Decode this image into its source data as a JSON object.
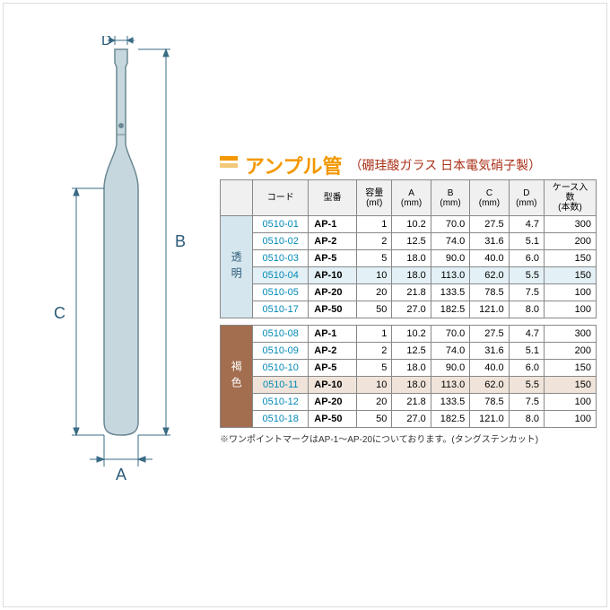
{
  "title": {
    "main": "アンプル管",
    "sub": "（硼珪酸ガラス 日本電気硝子製）"
  },
  "headers": {
    "code": "コード",
    "model": "型番",
    "cap_l1": "容量",
    "cap_l2": "(mℓ)",
    "a_l1": "A",
    "a_l2": "(mm)",
    "b_l1": "B",
    "b_l2": "(mm)",
    "c_l1": "C",
    "c_l2": "(mm)",
    "d_l1": "D",
    "d_l2": "(mm)",
    "case_l1": "ケース入数",
    "case_l2": "(本数)"
  },
  "group_clear": {
    "label": "透明"
  },
  "group_brown": {
    "label": "褐色"
  },
  "rows_clear": [
    {
      "code": "0510-01",
      "model": "AP-1",
      "cap": "1",
      "a": "10.2",
      "b": "70.0",
      "c": "27.5",
      "d": "4.7",
      "case": "300",
      "hl": false
    },
    {
      "code": "0510-02",
      "model": "AP-2",
      "cap": "2",
      "a": "12.5",
      "b": "74.0",
      "c": "31.6",
      "d": "5.1",
      "case": "200",
      "hl": false
    },
    {
      "code": "0510-03",
      "model": "AP-5",
      "cap": "5",
      "a": "18.0",
      "b": "90.0",
      "c": "40.0",
      "d": "6.0",
      "case": "150",
      "hl": false
    },
    {
      "code": "0510-04",
      "model": "AP-10",
      "cap": "10",
      "a": "18.0",
      "b": "113.0",
      "c": "62.0",
      "d": "5.5",
      "case": "150",
      "hl": true
    },
    {
      "code": "0510-05",
      "model": "AP-20",
      "cap": "20",
      "a": "21.8",
      "b": "133.5",
      "c": "78.5",
      "d": "7.5",
      "case": "100",
      "hl": false
    },
    {
      "code": "0510-17",
      "model": "AP-50",
      "cap": "50",
      "a": "27.0",
      "b": "182.5",
      "c": "121.0",
      "d": "8.0",
      "case": "100",
      "hl": false
    }
  ],
  "rows_brown": [
    {
      "code": "0510-08",
      "model": "AP-1",
      "cap": "1",
      "a": "10.2",
      "b": "70.0",
      "c": "27.5",
      "d": "4.7",
      "case": "300",
      "hl": false
    },
    {
      "code": "0510-09",
      "model": "AP-2",
      "cap": "2",
      "a": "12.5",
      "b": "74.0",
      "c": "31.6",
      "d": "5.1",
      "case": "200",
      "hl": false
    },
    {
      "code": "0510-10",
      "model": "AP-5",
      "cap": "5",
      "a": "18.0",
      "b": "90.0",
      "c": "40.0",
      "d": "6.0",
      "case": "150",
      "hl": false
    },
    {
      "code": "0510-11",
      "model": "AP-10",
      "cap": "10",
      "a": "18.0",
      "b": "113.0",
      "c": "62.0",
      "d": "5.5",
      "case": "150",
      "hl": true
    },
    {
      "code": "0510-12",
      "model": "AP-20",
      "cap": "20",
      "a": "21.8",
      "b": "133.5",
      "c": "78.5",
      "d": "7.5",
      "case": "100",
      "hl": false
    },
    {
      "code": "0510-18",
      "model": "AP-50",
      "cap": "50",
      "a": "27.0",
      "b": "182.5",
      "c": "121.0",
      "d": "8.0",
      "case": "100",
      "hl": false
    }
  ],
  "note": "※ワンポイントマークはAP-1～AP-20についております。(タングステンカット)",
  "diagram": {
    "labels": {
      "A": "A",
      "B": "B",
      "C": "C",
      "D": "D"
    },
    "colors": {
      "glass_fill": "#c6d8de",
      "glass_stroke": "#6b8893",
      "dim_line": "#3a6b84",
      "text": "#2b5a78"
    }
  },
  "colors": {
    "accent_orange": "#f39800",
    "clear_bg": "#d5e6ee",
    "brown_bg": "#a36d4f",
    "hl_clear": "#e3f0f5",
    "hl_brown": "#f0e4da",
    "code_link": "#0089b6"
  }
}
